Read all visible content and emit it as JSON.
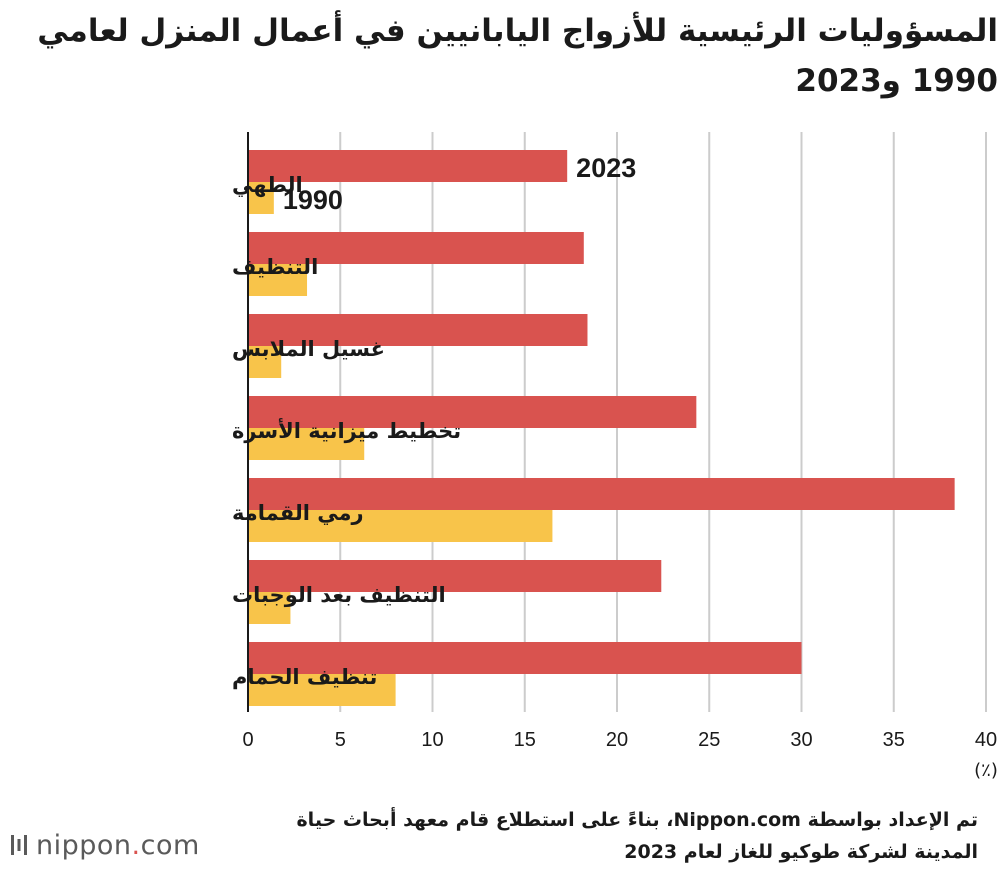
{
  "title": "المسؤوليات الرئيسية للأزواج اليابانيين في أعمال المنزل لعامي 1990 و2023",
  "source_line1": "تم الإعداد بواسطة Nippon.com، بناءً على استطلاع قام معهد أبحاث حياة",
  "source_line2": "المدينة لشركة طوكيو للغاز لعام 2023",
  "logo": {
    "name": "nippon",
    "dot": ".",
    "suffix": "com"
  },
  "chart_data": {
    "type": "bar",
    "orientation": "horizontal",
    "categories": [
      "الطهي",
      "التنظيف",
      "غسيل الملابس",
      "تخطيط ميزانية الأسرة",
      "رمي القمامة",
      "التنظيف بعد الوجبات",
      "تنظيف الحمام"
    ],
    "series": [
      {
        "name": "2023",
        "color": "#d9534f",
        "values": [
          17.3,
          18.2,
          18.4,
          24.3,
          38.3,
          22.4,
          30.0
        ]
      },
      {
        "name": "1990",
        "color": "#f8c44a",
        "values": [
          1.4,
          3.2,
          1.8,
          6.3,
          16.5,
          2.3,
          8.0
        ]
      }
    ],
    "xlim": [
      0,
      40
    ],
    "xticks": [
      "0",
      "5",
      "10",
      "15",
      "20",
      "25",
      "30",
      "35",
      "40"
    ],
    "unit": "(٪)",
    "grid": true,
    "gridline_color": "#cccccc"
  }
}
